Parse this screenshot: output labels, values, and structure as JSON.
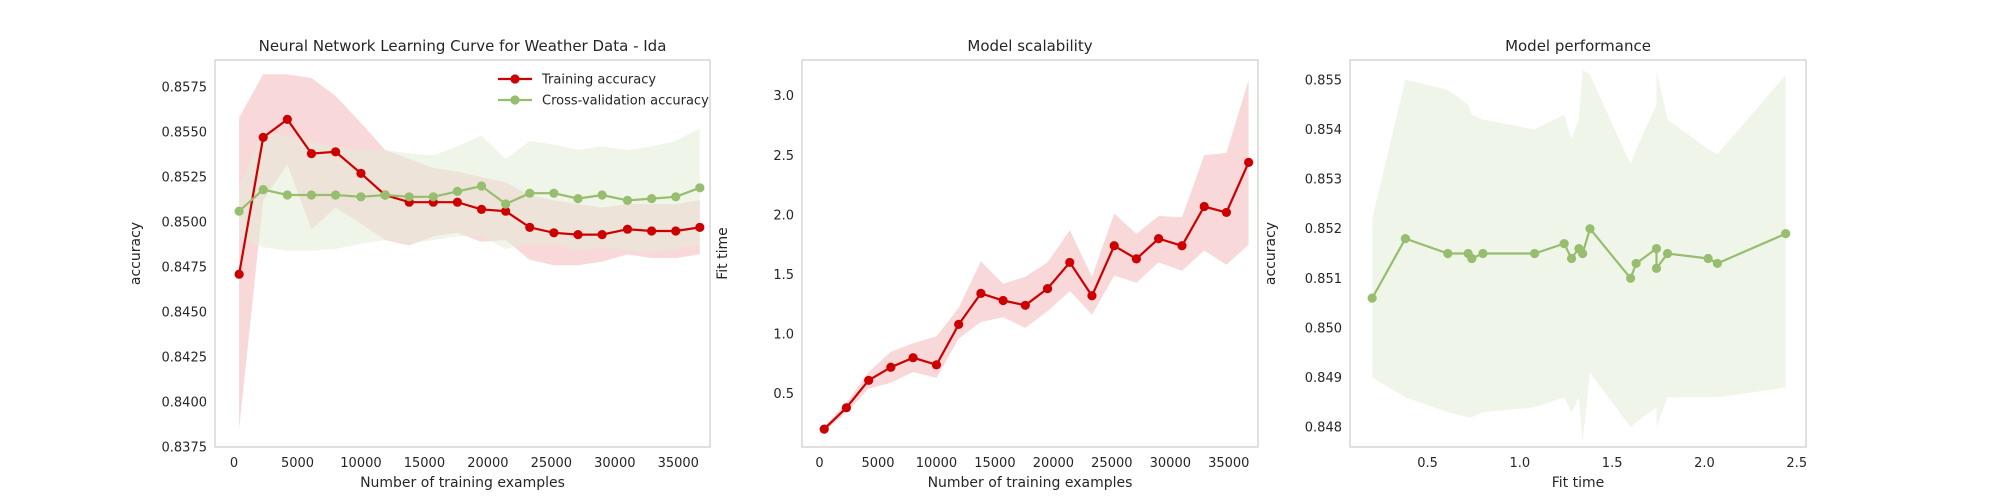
{
  "chart_data": [
    {
      "type": "line",
      "title": "Neural Network Learning Curve for Weather Data - Ida",
      "xlabel": "Number of training examples",
      "ylabel": "accuracy",
      "xlim": [
        -1500,
        37500
      ],
      "ylim": [
        0.8375,
        0.859
      ],
      "xticks": [
        0,
        5000,
        10000,
        15000,
        20000,
        25000,
        30000,
        35000
      ],
      "yticks": [
        0.8375,
        0.84,
        0.8425,
        0.845,
        0.8475,
        0.85,
        0.8525,
        0.855,
        0.8575
      ],
      "ytick_decimals": 4,
      "grid": false,
      "legend": "top-right",
      "x": [
        400,
        2300,
        4200,
        6100,
        8000,
        10000,
        11900,
        13800,
        15700,
        17600,
        19500,
        21400,
        23300,
        25200,
        27100,
        29000,
        31000,
        32900,
        34800,
        36700
      ],
      "series": [
        {
          "name": "Training accuracy",
          "color": "#cc0000",
          "band_color": "#f2b8b8",
          "values": [
            0.8471,
            0.8547,
            0.8557,
            0.8538,
            0.8539,
            0.8527,
            0.8515,
            0.8511,
            0.8511,
            0.8511,
            0.8507,
            0.8506,
            0.8497,
            0.8494,
            0.8493,
            0.8493,
            0.8496,
            0.8495,
            0.8495,
            0.8497
          ],
          "upper": [
            0.8558,
            0.8582,
            0.8582,
            0.858,
            0.857,
            0.8555,
            0.854,
            0.8535,
            0.853,
            0.8528,
            0.8525,
            0.8522,
            0.8515,
            0.8512,
            0.851,
            0.8508,
            0.851,
            0.851,
            0.851,
            0.8512
          ],
          "lower": [
            0.8385,
            0.8512,
            0.8532,
            0.8496,
            0.8508,
            0.8499,
            0.849,
            0.8487,
            0.8492,
            0.8494,
            0.8489,
            0.849,
            0.8479,
            0.8476,
            0.8476,
            0.8478,
            0.8482,
            0.848,
            0.848,
            0.8482
          ]
        },
        {
          "name": "Cross-validation accuracy",
          "color": "#96be6e",
          "band_color": "#e3ecd8",
          "values": [
            0.8506,
            0.8518,
            0.8515,
            0.8515,
            0.8515,
            0.8514,
            0.8515,
            0.8514,
            0.8514,
            0.8517,
            0.852,
            0.851,
            0.8516,
            0.8516,
            0.8513,
            0.8515,
            0.8512,
            0.8513,
            0.8514,
            0.8519
          ],
          "upper": [
            0.852,
            0.855,
            0.8548,
            0.8545,
            0.8542,
            0.854,
            0.854,
            0.8538,
            0.8537,
            0.8542,
            0.8548,
            0.8535,
            0.8545,
            0.8543,
            0.854,
            0.8542,
            0.854,
            0.8542,
            0.8545,
            0.8552
          ],
          "lower": [
            0.8492,
            0.8486,
            0.8484,
            0.8484,
            0.8485,
            0.8488,
            0.849,
            0.8488,
            0.849,
            0.8492,
            0.8492,
            0.8485,
            0.8488,
            0.8488,
            0.8484,
            0.8486,
            0.8484,
            0.8483,
            0.8485,
            0.8487
          ]
        }
      ]
    },
    {
      "type": "line",
      "title": "Model scalability",
      "xlabel": "Number of training examples",
      "ylabel": "Fit time",
      "xlim": [
        -1500,
        37500
      ],
      "ylim": [
        0.05,
        3.3
      ],
      "xticks": [
        0,
        5000,
        10000,
        15000,
        20000,
        25000,
        30000,
        35000
      ],
      "yticks": [
        0.5,
        1.0,
        1.5,
        2.0,
        2.5,
        3.0
      ],
      "ytick_decimals": 1,
      "grid": false,
      "x": [
        400,
        2300,
        4200,
        6100,
        8000,
        10000,
        11900,
        13800,
        15700,
        17600,
        19500,
        21400,
        23300,
        25200,
        27100,
        29000,
        31000,
        32900,
        34800,
        36700
      ],
      "series": [
        {
          "color": "#cc0000",
          "band_color": "#f2b8b8",
          "values": [
            0.2,
            0.38,
            0.61,
            0.72,
            0.8,
            0.74,
            1.08,
            1.34,
            1.28,
            1.24,
            1.38,
            1.6,
            1.32,
            1.74,
            1.63,
            1.8,
            1.74,
            2.07,
            2.02,
            2.44
          ],
          "upper": [
            0.22,
            0.42,
            0.68,
            0.85,
            0.92,
            0.98,
            1.22,
            1.61,
            1.42,
            1.48,
            1.6,
            1.87,
            1.48,
            2.01,
            1.84,
            1.99,
            1.98,
            2.5,
            2.52,
            3.13
          ],
          "lower": [
            0.18,
            0.34,
            0.54,
            0.59,
            0.68,
            0.63,
            0.96,
            1.1,
            1.14,
            1.05,
            1.19,
            1.36,
            1.16,
            1.49,
            1.43,
            1.6,
            1.53,
            1.7,
            1.58,
            1.75
          ]
        }
      ]
    },
    {
      "type": "line",
      "title": "Model performance",
      "xlabel": "Fit time",
      "ylabel": "accuracy",
      "xlim": [
        0.08,
        2.55
      ],
      "ylim": [
        0.8476,
        0.8554
      ],
      "xticks": [
        0.5,
        1.0,
        1.5,
        2.0,
        2.5
      ],
      "yticks": [
        0.848,
        0.849,
        0.85,
        0.851,
        0.852,
        0.853,
        0.854,
        0.855
      ],
      "xtick_decimals": 1,
      "ytick_decimals": 3,
      "grid": false,
      "x": [
        0.2,
        0.38,
        0.61,
        0.72,
        0.74,
        0.8,
        1.08,
        1.24,
        1.28,
        1.32,
        1.34,
        1.38,
        1.6,
        1.63,
        1.74,
        1.74,
        1.8,
        2.02,
        2.07,
        2.44
      ],
      "series": [
        {
          "color": "#96be6e",
          "band_color": "#e3ecd8",
          "values": [
            0.8506,
            0.8518,
            0.8515,
            0.8515,
            0.8514,
            0.8515,
            0.8515,
            0.8517,
            0.8514,
            0.8516,
            0.8515,
            0.852,
            0.851,
            0.8513,
            0.8516,
            0.8512,
            0.8515,
            0.8514,
            0.8513,
            0.8519
          ],
          "upper": [
            0.8522,
            0.855,
            0.8548,
            0.8545,
            0.8543,
            0.8542,
            0.854,
            0.8543,
            0.8538,
            0.8542,
            0.8552,
            0.8551,
            0.8533,
            0.8536,
            0.8545,
            0.8552,
            0.8542,
            0.8536,
            0.8535,
            0.8551
          ],
          "lower": [
            0.849,
            0.8486,
            0.8483,
            0.8482,
            0.8482,
            0.8483,
            0.8484,
            0.8486,
            0.8483,
            0.8486,
            0.8477,
            0.8491,
            0.848,
            0.8481,
            0.8484,
            0.848,
            0.8486,
            0.8486,
            0.8486,
            0.8488
          ]
        }
      ]
    }
  ]
}
